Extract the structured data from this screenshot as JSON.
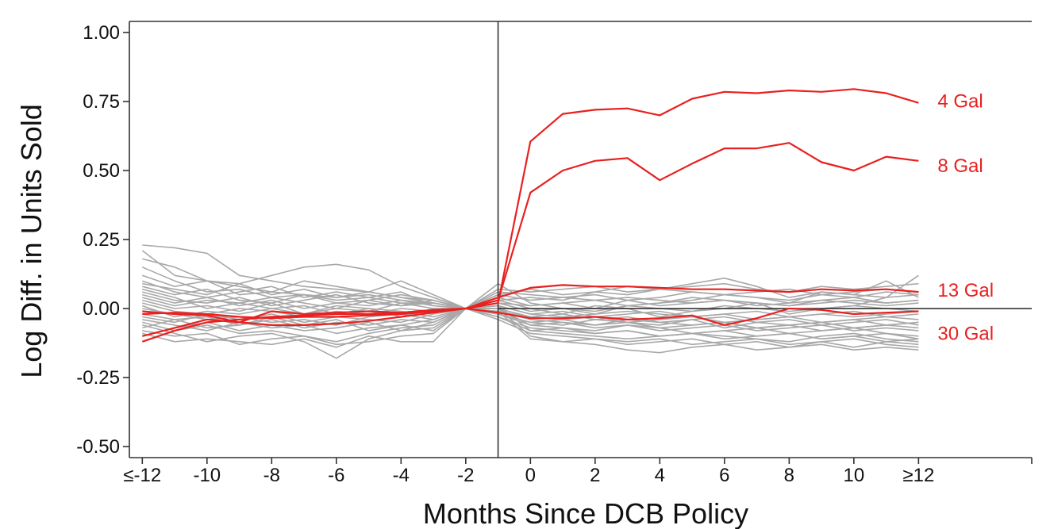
{
  "chart_data": {
    "type": "line",
    "title": "",
    "xlabel": "Months Since DCB Policy",
    "ylabel": "Log Diff. in Units Sold",
    "xlim": [
      -12.4,
      15.5
    ],
    "ylim": [
      -0.54,
      1.04
    ],
    "x_ticks": [
      {
        "value": -12,
        "label": "≤-12"
      },
      {
        "value": -10,
        "label": "-10"
      },
      {
        "value": -8,
        "label": "-8"
      },
      {
        "value": -6,
        "label": "-6"
      },
      {
        "value": -4,
        "label": "-4"
      },
      {
        "value": -2,
        "label": "-2"
      },
      {
        "value": 0,
        "label": "0"
      },
      {
        "value": 2,
        "label": "2"
      },
      {
        "value": 4,
        "label": "4"
      },
      {
        "value": 6,
        "label": "6"
      },
      {
        "value": 8,
        "label": "8"
      },
      {
        "value": 10,
        "label": "10"
      },
      {
        "value": 12,
        "label": "≥12"
      }
    ],
    "y_ticks": [
      {
        "value": 1.0,
        "label": "1.00"
      },
      {
        "value": 0.75,
        "label": "0.75"
      },
      {
        "value": 0.5,
        "label": "0.50"
      },
      {
        "value": 0.25,
        "label": "0.25"
      },
      {
        "value": 0.0,
        "label": "0.00"
      },
      {
        "value": -0.25,
        "label": "-0.25"
      },
      {
        "value": -0.5,
        "label": "-0.50"
      }
    ],
    "reference_lines": {
      "vertical_x": -1,
      "horizontal_y": 0
    },
    "colors": {
      "highlight": "#e8201f",
      "background_series": "#a8a8a8",
      "axis": "#333333"
    },
    "x": [
      -12,
      -11,
      -10,
      -9,
      -8,
      -7,
      -6,
      -5,
      -4,
      -3,
      -2,
      -1,
      0,
      1,
      2,
      3,
      4,
      5,
      6,
      7,
      8,
      9,
      10,
      11,
      12
    ],
    "series": [
      {
        "name": "4 Gal",
        "highlight": true,
        "values": [
          -0.02,
          -0.015,
          -0.02,
          -0.03,
          -0.035,
          -0.03,
          -0.03,
          -0.025,
          -0.02,
          -0.01,
          0.0,
          0.02,
          0.605,
          0.705,
          0.72,
          0.725,
          0.7,
          0.76,
          0.785,
          0.78,
          0.79,
          0.785,
          0.795,
          0.78,
          0.745
        ]
      },
      {
        "name": "8 Gal",
        "highlight": true,
        "values": [
          -0.12,
          -0.08,
          -0.05,
          -0.04,
          -0.03,
          -0.025,
          -0.02,
          -0.02,
          -0.015,
          -0.005,
          0.0,
          0.03,
          0.42,
          0.5,
          0.535,
          0.545,
          0.465,
          0.525,
          0.58,
          0.58,
          0.6,
          0.53,
          0.5,
          0.55,
          0.535
        ]
      },
      {
        "name": "13 Gal",
        "highlight": true,
        "values": [
          -0.01,
          -0.02,
          -0.025,
          -0.05,
          -0.01,
          -0.02,
          -0.015,
          -0.01,
          -0.015,
          -0.005,
          0.0,
          0.04,
          0.075,
          0.085,
          0.08,
          0.08,
          0.075,
          0.07,
          0.07,
          0.065,
          0.06,
          0.07,
          0.065,
          0.07,
          0.06
        ]
      },
      {
        "name": "30 Gal",
        "highlight": true,
        "values": [
          -0.1,
          -0.07,
          -0.04,
          -0.05,
          -0.06,
          -0.06,
          -0.055,
          -0.045,
          -0.03,
          -0.015,
          0.0,
          -0.015,
          -0.035,
          -0.035,
          -0.03,
          -0.04,
          -0.035,
          -0.025,
          -0.06,
          -0.035,
          0.0,
          -0.005,
          -0.02,
          -0.015,
          -0.01
        ]
      },
      {
        "values": [
          0.23,
          0.22,
          0.2,
          0.12,
          0.1,
          0.08,
          0.07,
          0.06,
          0.04,
          0.02,
          0.0,
          0.06,
          0.05,
          0.04,
          0.03,
          0.04,
          0.03,
          0.02,
          0.03,
          0.02,
          0.01,
          0.02,
          0.03,
          0.02,
          0.03
        ]
      },
      {
        "values": [
          0.21,
          0.12,
          0.1,
          0.09,
          0.12,
          0.15,
          0.16,
          0.14,
          0.08,
          0.04,
          0.0,
          0.09,
          0.02,
          0.0,
          -0.02,
          0.01,
          0.02,
          0.03,
          0.05,
          0.04,
          0.02,
          0.06,
          0.05,
          0.04,
          0.05
        ]
      },
      {
        "values": [
          0.18,
          0.15,
          0.1,
          0.08,
          0.06,
          0.05,
          0.04,
          0.05,
          0.03,
          0.02,
          0.0,
          0.05,
          0.07,
          0.05,
          0.06,
          0.08,
          0.07,
          0.09,
          0.11,
          0.08,
          0.04,
          0.06,
          0.05,
          0.1,
          0.04
        ]
      },
      {
        "values": [
          0.15,
          0.1,
          0.06,
          0.07,
          0.04,
          0.05,
          0.02,
          0.03,
          0.05,
          0.03,
          0.0,
          -0.02,
          -0.05,
          -0.06,
          -0.04,
          -0.05,
          -0.06,
          -0.04,
          -0.07,
          -0.05,
          -0.06,
          -0.05,
          -0.04,
          -0.06,
          -0.05
        ]
      },
      {
        "values": [
          0.12,
          0.08,
          0.1,
          0.05,
          0.06,
          0.1,
          0.08,
          0.06,
          0.1,
          0.05,
          0.0,
          0.03,
          0.0,
          -0.02,
          0.01,
          0.0,
          -0.03,
          -0.01,
          0.0,
          0.02,
          -0.02,
          0.0,
          0.01,
          0.04,
          0.12
        ]
      },
      {
        "values": [
          0.1,
          0.06,
          0.04,
          0.06,
          0.08,
          0.04,
          0.06,
          0.04,
          0.02,
          0.02,
          0.0,
          0.01,
          -0.02,
          -0.03,
          -0.02,
          -0.01,
          -0.02,
          -0.03,
          -0.02,
          -0.04,
          -0.03,
          -0.02,
          -0.03,
          -0.02,
          -0.01
        ]
      },
      {
        "values": [
          0.08,
          0.05,
          0.07,
          0.03,
          0.02,
          0.05,
          0.03,
          0.04,
          0.06,
          0.01,
          0.0,
          -0.01,
          -0.04,
          -0.05,
          -0.06,
          -0.04,
          -0.05,
          -0.06,
          -0.05,
          -0.07,
          -0.06,
          -0.05,
          -0.07,
          -0.06,
          -0.05
        ]
      },
      {
        "values": [
          0.06,
          0.03,
          0.02,
          0.04,
          0.01,
          0.03,
          0.05,
          0.02,
          0.01,
          0.03,
          0.0,
          0.0,
          -0.06,
          -0.07,
          -0.08,
          -0.06,
          -0.07,
          -0.09,
          -0.08,
          -0.07,
          -0.09,
          -0.08,
          -0.07,
          -0.09,
          -0.1
        ]
      },
      {
        "values": [
          0.05,
          0.02,
          0.04,
          0.01,
          0.03,
          0.0,
          0.02,
          0.01,
          0.03,
          0.01,
          0.0,
          0.02,
          -0.01,
          0.0,
          -0.01,
          0.01,
          0.0,
          -0.01,
          0.01,
          0.0,
          -0.01,
          0.0,
          0.01,
          0.0,
          -0.01
        ]
      },
      {
        "values": [
          0.03,
          0.0,
          0.01,
          -0.01,
          0.02,
          -0.02,
          0.0,
          -0.01,
          0.02,
          0.0,
          0.0,
          0.01,
          -0.08,
          -0.09,
          -0.1,
          -0.11,
          -0.1,
          -0.09,
          -0.1,
          -0.11,
          -0.12,
          -0.1,
          -0.09,
          -0.11,
          -0.12
        ]
      },
      {
        "values": [
          0.02,
          -0.01,
          -0.02,
          0.0,
          -0.01,
          -0.03,
          -0.01,
          -0.02,
          0.0,
          -0.01,
          0.0,
          -0.01,
          -0.03,
          -0.04,
          -0.03,
          -0.05,
          -0.04,
          -0.03,
          -0.05,
          -0.04,
          -0.03,
          -0.05,
          -0.04,
          -0.03,
          -0.04
        ]
      },
      {
        "values": [
          0.0,
          -0.02,
          -0.04,
          -0.03,
          -0.05,
          -0.04,
          -0.06,
          -0.03,
          -0.02,
          -0.04,
          0.0,
          0.0,
          -0.1,
          -0.12,
          -0.11,
          -0.13,
          -0.12,
          -0.11,
          -0.13,
          -0.12,
          -0.14,
          -0.12,
          -0.11,
          -0.13,
          -0.14
        ]
      },
      {
        "values": [
          -0.02,
          -0.04,
          -0.03,
          -0.06,
          -0.04,
          -0.07,
          -0.05,
          -0.06,
          -0.04,
          -0.05,
          0.0,
          0.02,
          0.01,
          0.02,
          0.0,
          0.03,
          0.01,
          0.02,
          0.03,
          0.02,
          0.01,
          0.03,
          0.02,
          0.01,
          0.02
        ]
      },
      {
        "values": [
          -0.04,
          -0.06,
          -0.08,
          -0.05,
          -0.07,
          -0.06,
          -0.09,
          -0.07,
          -0.06,
          -0.04,
          0.0,
          -0.02,
          -0.05,
          -0.04,
          -0.06,
          -0.05,
          -0.07,
          -0.06,
          -0.05,
          -0.07,
          -0.06,
          -0.08,
          -0.07,
          -0.06,
          -0.07
        ]
      },
      {
        "values": [
          -0.05,
          -0.08,
          -0.06,
          -0.09,
          -0.08,
          -0.1,
          -0.12,
          -0.09,
          -0.07,
          -0.06,
          0.0,
          -0.03,
          -0.07,
          -0.08,
          -0.09,
          -0.08,
          -0.1,
          -0.09,
          -0.08,
          -0.1,
          -0.09,
          -0.11,
          -0.1,
          -0.09,
          -0.11
        ]
      },
      {
        "values": [
          -0.06,
          -0.09,
          -0.12,
          -0.1,
          -0.09,
          -0.12,
          -0.18,
          -0.11,
          -0.08,
          -0.07,
          0.0,
          0.01,
          -0.02,
          -0.01,
          -0.03,
          -0.02,
          -0.01,
          -0.03,
          -0.02,
          -0.01,
          -0.03,
          -0.02,
          -0.01,
          -0.03,
          -0.02
        ]
      },
      {
        "values": [
          -0.08,
          -0.1,
          -0.09,
          -0.13,
          -0.11,
          -0.1,
          -0.13,
          -0.12,
          -0.1,
          -0.09,
          0.0,
          -0.04,
          -0.09,
          -0.1,
          -0.11,
          -0.12,
          -0.11,
          -0.13,
          -0.12,
          -0.11,
          -0.13,
          -0.12,
          -0.14,
          -0.12,
          -0.13
        ]
      },
      {
        "values": [
          -0.09,
          -0.12,
          -0.11,
          -0.12,
          -0.13,
          -0.11,
          -0.14,
          -0.1,
          -0.12,
          -0.12,
          0.0,
          0.05,
          0.03,
          0.04,
          0.05,
          0.03,
          0.04,
          0.06,
          0.05,
          0.04,
          0.03,
          0.05,
          0.04,
          0.06,
          0.05
        ]
      },
      {
        "values": [
          -0.1,
          -0.07,
          -0.05,
          -0.08,
          -0.06,
          -0.08,
          -0.07,
          -0.05,
          -0.08,
          -0.05,
          0.0,
          -0.01,
          -0.11,
          -0.12,
          -0.13,
          -0.15,
          -0.16,
          -0.14,
          -0.13,
          -0.15,
          -0.14,
          -0.13,
          -0.15,
          -0.14,
          -0.15
        ]
      },
      {
        "values": [
          0.07,
          0.04,
          0.0,
          0.02,
          0.0,
          -0.02,
          0.01,
          0.0,
          -0.03,
          0.0,
          0.0,
          0.03,
          0.04,
          0.03,
          0.06,
          0.05,
          0.07,
          0.06,
          0.05,
          0.06,
          0.07,
          0.05,
          0.06,
          0.07,
          0.06
        ]
      },
      {
        "values": [
          0.04,
          0.01,
          0.03,
          0.02,
          0.04,
          0.02,
          0.0,
          0.03,
          0.01,
          0.02,
          0.0,
          -0.02,
          -0.06,
          -0.05,
          -0.07,
          -0.06,
          -0.08,
          -0.07,
          -0.06,
          -0.08,
          -0.07,
          -0.06,
          -0.08,
          -0.07,
          -0.08
        ]
      },
      {
        "values": [
          -0.03,
          -0.05,
          -0.02,
          -0.04,
          -0.02,
          -0.05,
          -0.03,
          -0.04,
          -0.05,
          -0.02,
          0.0,
          0.0,
          -0.03,
          -0.02,
          -0.04,
          -0.03,
          -0.05,
          -0.04,
          -0.03,
          -0.05,
          -0.04,
          -0.06,
          -0.05,
          -0.04,
          -0.06
        ]
      },
      {
        "values": [
          0.09,
          0.07,
          0.05,
          0.09,
          0.05,
          0.07,
          0.04,
          0.06,
          0.04,
          0.03,
          0.0,
          0.07,
          0.06,
          0.07,
          0.08,
          0.06,
          0.07,
          0.08,
          0.09,
          0.07,
          0.06,
          0.08,
          0.07,
          0.08,
          0.09
        ]
      },
      {
        "values": [
          0.01,
          -0.03,
          -0.01,
          -0.02,
          0.0,
          0.01,
          -0.02,
          0.0,
          -0.01,
          -0.03,
          0.0,
          -0.03,
          -0.08,
          -0.07,
          -0.09,
          -0.08,
          -0.1,
          -0.09,
          -0.11,
          -0.1,
          -0.09,
          -0.11,
          -0.1,
          -0.12,
          -0.11
        ]
      },
      {
        "values": [
          -0.07,
          -0.04,
          -0.07,
          -0.06,
          -0.03,
          -0.06,
          -0.04,
          -0.08,
          -0.06,
          -0.08,
          0.0,
          0.04,
          0.01,
          0.02,
          0.03,
          0.01,
          0.02,
          0.04,
          0.03,
          0.01,
          0.02,
          0.03,
          0.04,
          0.02,
          0.03
        ]
      }
    ],
    "annotations": [
      {
        "text": "4 Gal",
        "series": "4 Gal"
      },
      {
        "text": "8 Gal",
        "series": "8 Gal"
      },
      {
        "text": "13 Gal",
        "series": "13 Gal"
      },
      {
        "text": "30 Gal",
        "series": "30 Gal"
      }
    ]
  }
}
